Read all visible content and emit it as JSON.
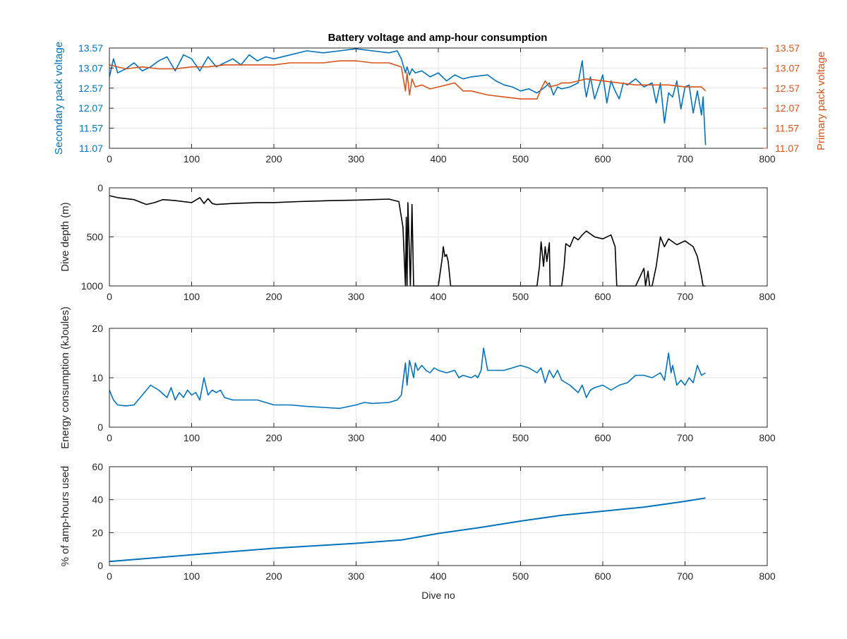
{
  "figure": {
    "title": "Battery voltage and amp-hour consumption",
    "colors": {
      "blue": "#0072BD",
      "orange": "#D95319",
      "black": "#000000",
      "grid": "#e6e6e6",
      "axis": "#262626"
    }
  },
  "chart_data": [
    {
      "id": "voltage",
      "type": "line",
      "title": "Battery voltage and amp-hour consumption",
      "xlabel": "",
      "ylabel_left": "Secondary pack voltage",
      "ylabel_right": "Primary pack voltage",
      "xlim": [
        0,
        800
      ],
      "ylim": [
        11.07,
        13.57
      ],
      "xticks": [
        0,
        100,
        200,
        300,
        400,
        500,
        600,
        700,
        800
      ],
      "yticks_left": [
        11.07,
        11.57,
        12.07,
        12.57,
        13.07,
        13.57
      ],
      "ytick_labels_left": [
        "11.07",
        "11.57",
        "12.07",
        "12.57",
        "13.07",
        "13.57"
      ],
      "yticks_right": [
        11.07,
        11.57,
        12.07,
        12.57,
        13.07,
        13.57
      ],
      "ytick_labels_right": [
        "11.07",
        "11.57",
        "12.07",
        "12.57",
        "13.07",
        "13.57"
      ],
      "grid": true,
      "series": [
        {
          "axis": "left",
          "color": "#0072BD",
          "x": [
            0,
            5,
            10,
            20,
            30,
            40,
            50,
            60,
            70,
            80,
            90,
            100,
            110,
            120,
            130,
            140,
            150,
            160,
            170,
            180,
            190,
            200,
            220,
            240,
            260,
            280,
            300,
            320,
            340,
            350,
            355,
            360,
            362,
            365,
            368,
            372,
            380,
            390,
            400,
            410,
            420,
            430,
            440,
            460,
            470,
            480,
            490,
            500,
            510,
            520,
            530,
            535,
            540,
            545,
            550,
            560,
            570,
            575,
            578,
            580,
            585,
            590,
            595,
            600,
            605,
            610,
            615,
            620,
            625,
            630,
            640,
            650,
            660,
            665,
            670,
            675,
            680,
            685,
            690,
            695,
            700,
            705,
            710,
            715,
            720,
            722,
            725
          ],
          "y": [
            12.85,
            13.3,
            12.95,
            13.05,
            13.2,
            13.0,
            13.1,
            13.25,
            13.35,
            13.0,
            13.4,
            13.3,
            13.0,
            13.35,
            13.1,
            13.2,
            13.3,
            13.15,
            13.4,
            13.25,
            13.35,
            13.3,
            13.4,
            13.5,
            13.45,
            13.5,
            13.55,
            13.5,
            13.45,
            13.5,
            13.3,
            12.95,
            13.1,
            12.9,
            13.05,
            12.95,
            13.0,
            12.85,
            12.95,
            12.75,
            12.9,
            12.8,
            12.85,
            12.9,
            12.75,
            12.65,
            12.6,
            12.5,
            12.55,
            12.45,
            12.6,
            12.7,
            12.4,
            12.6,
            12.55,
            12.6,
            12.7,
            13.25,
            12.6,
            12.35,
            12.85,
            12.3,
            12.6,
            12.9,
            12.2,
            12.75,
            12.5,
            12.3,
            12.7,
            12.65,
            12.8,
            12.6,
            12.7,
            12.2,
            12.7,
            11.7,
            12.45,
            12.35,
            12.75,
            12.05,
            12.6,
            12.65,
            11.95,
            12.5,
            11.9,
            12.35,
            11.15
          ]
        },
        {
          "axis": "right",
          "color": "#D95319",
          "x": [
            0,
            20,
            40,
            60,
            80,
            100,
            120,
            140,
            160,
            180,
            200,
            220,
            240,
            260,
            280,
            300,
            320,
            340,
            355,
            360,
            362,
            365,
            368,
            372,
            380,
            390,
            400,
            420,
            430,
            440,
            460,
            480,
            500,
            520,
            525,
            530,
            535,
            545,
            550,
            560,
            570,
            580,
            600,
            620,
            640,
            660,
            680,
            700,
            720,
            725
          ],
          "y": [
            13.15,
            13.05,
            13.1,
            13.05,
            13.05,
            13.1,
            13.1,
            13.15,
            13.15,
            13.15,
            13.15,
            13.2,
            13.2,
            13.2,
            13.25,
            13.25,
            13.2,
            13.2,
            13.1,
            12.5,
            12.95,
            12.4,
            12.8,
            12.6,
            12.65,
            12.55,
            12.6,
            12.7,
            12.5,
            12.5,
            12.4,
            12.35,
            12.3,
            12.3,
            12.55,
            12.75,
            12.6,
            12.65,
            12.7,
            12.7,
            12.75,
            12.8,
            12.75,
            12.7,
            12.65,
            12.65,
            12.65,
            12.6,
            12.6,
            12.5
          ]
        }
      ]
    },
    {
      "id": "depth",
      "type": "line",
      "title": "",
      "xlabel": "",
      "ylabel": "Dive depth (m)",
      "xlim": [
        0,
        800
      ],
      "ylim": [
        1000,
        0
      ],
      "reversed_y": true,
      "xticks": [
        0,
        100,
        200,
        300,
        400,
        500,
        600,
        700,
        800
      ],
      "yticks": [
        0,
        500,
        1000
      ],
      "ytick_labels": [
        "0",
        "500",
        "1000"
      ],
      "grid": true,
      "series": [
        {
          "color": "#000000",
          "x": [
            0,
            10,
            30,
            45,
            55,
            65,
            80,
            100,
            110,
            115,
            120,
            125,
            130,
            150,
            180,
            200,
            230,
            250,
            270,
            300,
            320,
            340,
            352,
            357,
            360,
            361,
            362,
            363,
            366,
            368,
            370,
            400,
            405,
            406,
            408,
            410,
            412,
            415,
            420,
            450,
            480,
            500,
            520,
            523,
            525,
            528,
            530,
            532,
            535,
            536,
            550,
            553,
            555,
            560,
            565,
            570,
            575,
            580,
            590,
            600,
            610,
            615,
            617,
            618,
            620,
            640,
            650,
            652,
            655,
            657,
            660,
            665,
            670,
            675,
            680,
            690,
            700,
            710,
            715,
            720,
            722,
            725
          ],
          "y": [
            80,
            100,
            120,
            170,
            150,
            120,
            130,
            150,
            100,
            160,
            110,
            160,
            170,
            160,
            150,
            150,
            140,
            135,
            130,
            125,
            120,
            115,
            140,
            400,
            1000,
            300,
            1000,
            150,
            1000,
            170,
            1000,
            1000,
            700,
            600,
            700,
            680,
            750,
            1000,
            1000,
            1000,
            1000,
            1000,
            1000,
            800,
            550,
            800,
            600,
            750,
            560,
            1000,
            1000,
            800,
            570,
            600,
            500,
            530,
            480,
            440,
            500,
            520,
            480,
            600,
            1000,
            1000,
            1000,
            1000,
            820,
            1000,
            850,
            1000,
            1000,
            800,
            500,
            600,
            520,
            580,
            540,
            600,
            700,
            900,
            1000,
            1000
          ]
        }
      ]
    },
    {
      "id": "energy",
      "type": "line",
      "title": "",
      "xlabel": "",
      "ylabel": "Energy consumption (kJoules)",
      "xlim": [
        0,
        800
      ],
      "ylim": [
        0,
        20
      ],
      "xticks": [
        0,
        100,
        200,
        300,
        400,
        500,
        600,
        700,
        800
      ],
      "yticks": [
        0,
        10,
        20
      ],
      "ytick_labels": [
        "0",
        "10",
        "20"
      ],
      "grid": true,
      "series": [
        {
          "color": "#0072BD",
          "x": [
            0,
            5,
            10,
            20,
            30,
            40,
            50,
            55,
            60,
            70,
            75,
            80,
            85,
            90,
            95,
            100,
            105,
            110,
            115,
            120,
            125,
            130,
            135,
            140,
            150,
            170,
            180,
            190,
            200,
            220,
            240,
            260,
            280,
            300,
            310,
            320,
            340,
            350,
            355,
            360,
            362,
            365,
            370,
            372,
            375,
            380,
            385,
            390,
            395,
            400,
            410,
            420,
            425,
            430,
            440,
            445,
            448,
            452,
            455,
            460,
            470,
            480,
            490,
            500,
            510,
            520,
            525,
            530,
            535,
            540,
            545,
            550,
            560,
            570,
            575,
            580,
            585,
            590,
            600,
            610,
            620,
            630,
            640,
            650,
            660,
            670,
            675,
            680,
            683,
            685,
            690,
            695,
            700,
            705,
            710,
            715,
            720,
            725
          ],
          "y": [
            7.5,
            5.5,
            4.5,
            4.3,
            4.5,
            6.5,
            8.5,
            8.0,
            7.5,
            6.0,
            8.0,
            5.5,
            7.0,
            6.0,
            7.5,
            6.5,
            7.0,
            5.5,
            10.0,
            6.5,
            7.5,
            7.0,
            7.5,
            6.0,
            5.5,
            5.5,
            5.5,
            5.0,
            4.5,
            4.5,
            4.2,
            4.0,
            3.8,
            4.5,
            5.0,
            4.8,
            5.0,
            5.5,
            6.5,
            13.0,
            8.5,
            13.5,
            10.0,
            13.0,
            11.5,
            12.5,
            11.5,
            11.0,
            12.0,
            11.5,
            11.0,
            11.5,
            10.0,
            10.5,
            10.0,
            10.5,
            10.0,
            11.5,
            16.0,
            11.5,
            11.5,
            11.5,
            12.0,
            12.5,
            12.0,
            11.0,
            12.0,
            9.0,
            11.5,
            10.0,
            11.5,
            9.5,
            8.5,
            7.0,
            8.5,
            6.0,
            7.5,
            8.0,
            8.5,
            7.5,
            8.5,
            9.0,
            10.5,
            10.5,
            10.0,
            11.0,
            9.5,
            15.0,
            11.0,
            12.5,
            8.5,
            9.5,
            8.5,
            10.0,
            9.0,
            12.5,
            10.5,
            11.0
          ]
        }
      ]
    },
    {
      "id": "amphours",
      "type": "line",
      "title": "",
      "xlabel": "Dive no",
      "ylabel": "% of amp-hours used",
      "xlim": [
        0,
        800
      ],
      "ylim": [
        0,
        60
      ],
      "xticks": [
        0,
        100,
        200,
        300,
        400,
        500,
        600,
        700,
        800
      ],
      "yticks": [
        0,
        20,
        40,
        60
      ],
      "ytick_labels": [
        "0",
        "20",
        "40",
        "60"
      ],
      "grid": true,
      "series": [
        {
          "color": "#0072BD",
          "x": [
            0,
            100,
            200,
            300,
            355,
            400,
            450,
            500,
            550,
            600,
            650,
            700,
            725
          ],
          "y": [
            2.5,
            6.5,
            10.5,
            13.5,
            15.5,
            19.5,
            23.0,
            27.0,
            30.5,
            33.0,
            35.5,
            39.0,
            41.0
          ]
        }
      ]
    }
  ]
}
